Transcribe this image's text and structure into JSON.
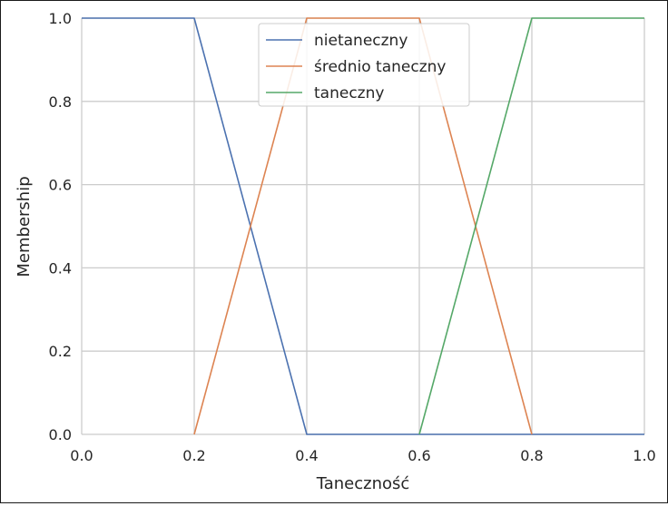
{
  "chart_data": {
    "type": "line",
    "xlabel": "Taneczność",
    "ylabel": "Membership",
    "xlim": [
      0.0,
      1.0
    ],
    "ylim": [
      0.0,
      1.0
    ],
    "xticks": [
      "0.0",
      "0.2",
      "0.4",
      "0.6",
      "0.8",
      "1.0"
    ],
    "yticks": [
      "0.0",
      "0.2",
      "0.4",
      "0.6",
      "0.8",
      "1.0"
    ],
    "grid": true,
    "legend_position": "top-center",
    "series": [
      {
        "name": "nietaneczny",
        "color": "#4c72b0",
        "x": [
          0.0,
          0.2,
          0.4,
          1.0
        ],
        "y": [
          1.0,
          1.0,
          0.0,
          0.0
        ]
      },
      {
        "name": "średnio taneczny",
        "color": "#dd8452",
        "x": [
          0.2,
          0.4,
          0.6,
          0.8
        ],
        "y": [
          0.0,
          1.0,
          1.0,
          0.0
        ]
      },
      {
        "name": "taneczny",
        "color": "#55a868",
        "x": [
          0.6,
          0.8,
          1.0
        ],
        "y": [
          0.0,
          1.0,
          1.0
        ]
      }
    ]
  }
}
